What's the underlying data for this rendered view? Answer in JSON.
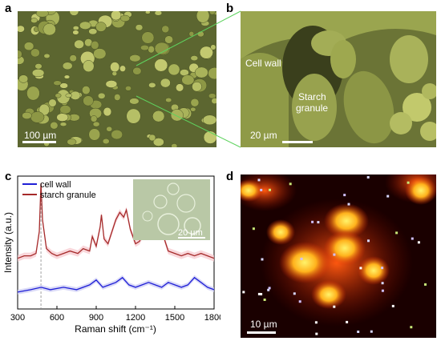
{
  "panels": {
    "a": {
      "label": "a",
      "scale_bar": "100 µm"
    },
    "b": {
      "label": "b",
      "scale_bar": "20 µm",
      "cell_wall_label": "Cell wall",
      "starch_label_line1": "Starch",
      "starch_label_line2": "granule"
    },
    "c": {
      "label": "c",
      "inset_scale_bar": "20 µm"
    },
    "d": {
      "label": "d",
      "scale_bar": "10 µm"
    }
  },
  "colors": {
    "cell_wall": "#1f1fd6",
    "starch_granule": "#a52a2a",
    "sem_tint": "#8c9a3c"
  },
  "chart_data": {
    "type": "line",
    "xlabel": "Raman shift (cm⁻¹)",
    "ylabel": "Intensity (a.u.)",
    "xlim": [
      300,
      1800
    ],
    "x_ticks": [
      "300",
      "600",
      "900",
      "1200",
      "1500",
      "1800"
    ],
    "legend_position": "top-left",
    "series": [
      {
        "name": "cell wall",
        "color": "#1f1fd6",
        "x": [
          300,
          400,
          480,
          550,
          650,
          750,
          850,
          900,
          950,
          1000,
          1050,
          1100,
          1150,
          1200,
          1250,
          1300,
          1350,
          1400,
          1450,
          1500,
          1550,
          1600,
          1650,
          1700,
          1750,
          1800
        ],
        "y": [
          0.1,
          0.12,
          0.14,
          0.12,
          0.14,
          0.12,
          0.16,
          0.2,
          0.14,
          0.16,
          0.18,
          0.22,
          0.16,
          0.14,
          0.16,
          0.18,
          0.16,
          0.14,
          0.18,
          0.16,
          0.14,
          0.16,
          0.22,
          0.18,
          0.14,
          0.12
        ]
      },
      {
        "name": "starch granule",
        "color": "#a52a2a",
        "x": [
          300,
          350,
          400,
          440,
          465,
          478,
          490,
          520,
          560,
          600,
          650,
          700,
          760,
          800,
          850,
          870,
          900,
          930,
          940,
          960,
          990,
          1020,
          1050,
          1080,
          1110,
          1130,
          1160,
          1200,
          1230,
          1260,
          1300,
          1340,
          1360,
          1380,
          1400,
          1420,
          1450,
          1500,
          1550,
          1600,
          1650,
          1700,
          1750,
          1800
        ],
        "y": [
          0.38,
          0.4,
          0.4,
          0.42,
          0.6,
          1.0,
          0.7,
          0.46,
          0.42,
          0.4,
          0.42,
          0.44,
          0.42,
          0.46,
          0.44,
          0.56,
          0.48,
          0.64,
          0.74,
          0.54,
          0.5,
          0.6,
          0.7,
          0.76,
          0.72,
          0.78,
          0.62,
          0.5,
          0.52,
          0.58,
          0.76,
          0.8,
          0.7,
          0.76,
          0.64,
          0.54,
          0.44,
          0.42,
          0.4,
          0.42,
          0.4,
          0.42,
          0.4,
          0.38
        ]
      }
    ],
    "guide_line_x": 478
  }
}
